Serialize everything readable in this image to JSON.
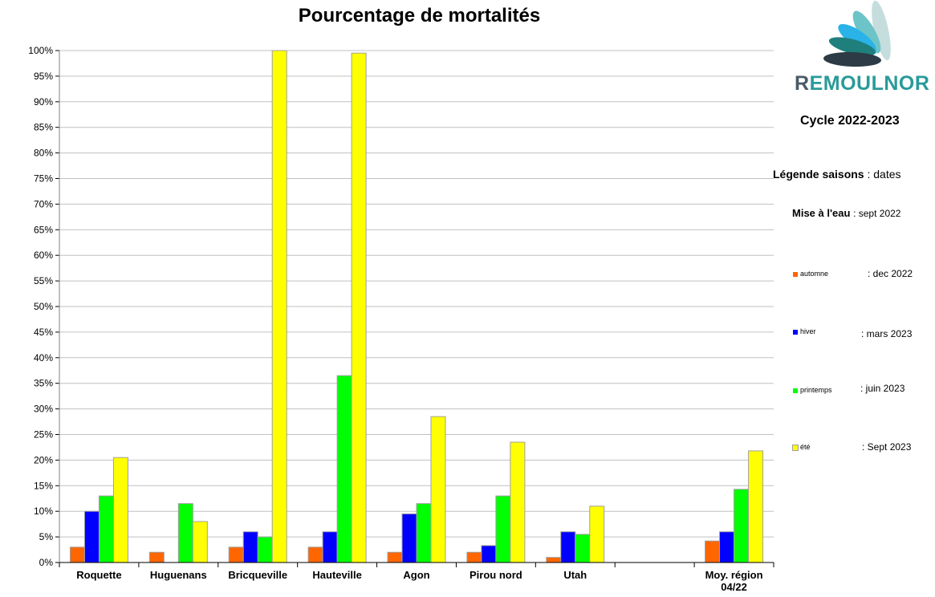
{
  "chart_data": {
    "type": "bar",
    "title": "Pourcentage de mortalités",
    "categories": [
      "Roquette",
      "Huguenans",
      "Bricqueville",
      "Hauteville",
      "Agon",
      "Pirou nord",
      "Utah",
      "",
      "Moy. région 04/22"
    ],
    "series": [
      {
        "name": "automne",
        "color": "#ff6600",
        "values": [
          3,
          2,
          3,
          3,
          2,
          2,
          1,
          null,
          4.2
        ]
      },
      {
        "name": "hiver",
        "color": "#0000ff",
        "values": [
          10,
          null,
          6,
          6,
          9.5,
          3.3,
          6,
          null,
          6
        ]
      },
      {
        "name": "printemps",
        "color": "#00ff00",
        "values": [
          13,
          11.5,
          5,
          36.5,
          11.5,
          13,
          5.5,
          null,
          14.3
        ]
      },
      {
        "name": "été",
        "color": "#ffff00",
        "values": [
          20.5,
          8,
          100,
          99.5,
          28.5,
          23.5,
          11,
          null,
          21.8
        ]
      }
    ],
    "ylim": [
      0,
      100
    ],
    "yticks": [
      0,
      5,
      10,
      15,
      20,
      25,
      30,
      35,
      40,
      45,
      50,
      55,
      60,
      65,
      70,
      75,
      80,
      85,
      90,
      95,
      100
    ],
    "ytick_labels": [
      "0%",
      "5%",
      "10%",
      "15%",
      "20%",
      "25%",
      "30%",
      "35%",
      "40%",
      "45%",
      "50%",
      "55%",
      "60%",
      "65%",
      "70%",
      "75%",
      "80%",
      "85%",
      "90%",
      "95%",
      "100%"
    ],
    "grid": true
  },
  "sidebar": {
    "logo_first_letter": "R",
    "logo_rest": "EMOULNOR",
    "cycle": "Cycle 2022-2023",
    "legend_title": "Légende saisons",
    "legend_sep": " : ",
    "legend_dates": "dates",
    "mise": "Mise à l'eau",
    "mise_date": ": sept 2022",
    "legend": [
      {
        "label": "automne",
        "color": "#ff6600",
        "date": ": dec 2022"
      },
      {
        "label": "hiver",
        "color": "#0000ff",
        "date": ": mars 2023"
      },
      {
        "label": "printemps",
        "color": "#00ff00",
        "date": ": juin 2023"
      },
      {
        "label": "été",
        "color": "#ffff00",
        "date": ": Sept 2023"
      }
    ]
  },
  "colors": {
    "bar_border": "#a0a0a0",
    "grid": "#c0c0c0",
    "axis": "#808080",
    "logo_teal": "#2a9a9a",
    "logo_dark": "#4a5a66"
  }
}
